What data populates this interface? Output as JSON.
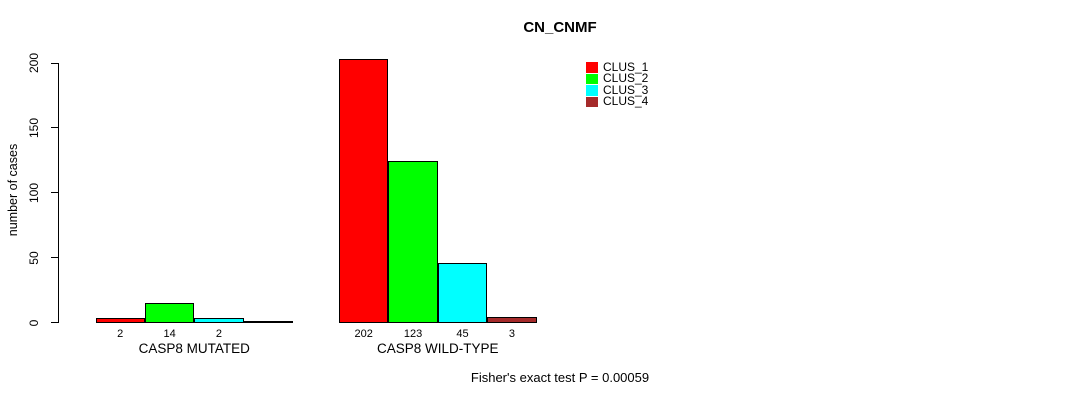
{
  "chart_data": {
    "type": "bar",
    "title": "CN_CNMF",
    "ylabel": "number of cases",
    "xlabel": "",
    "ylim": [
      0,
      200
    ],
    "yticks": [
      0,
      50,
      100,
      150,
      200
    ],
    "grid": false,
    "legend_position": "top-right",
    "legend": [
      {
        "label": "CLUS_1",
        "color": "#FF0000"
      },
      {
        "label": "CLUS_2",
        "color": "#00FF00"
      },
      {
        "label": "CLUS_3",
        "color": "#00FFFF"
      },
      {
        "label": "CLUS_4",
        "color": "#A52A2A"
      }
    ],
    "categories": [
      "CASP8 MUTATED",
      "CASP8 WILD-TYPE"
    ],
    "series": [
      {
        "name": "CLUS_1",
        "color": "#FF0000",
        "values": [
          2,
          202
        ]
      },
      {
        "name": "CLUS_2",
        "color": "#00FF00",
        "values": [
          14,
          123
        ]
      },
      {
        "name": "CLUS_3",
        "color": "#00FFFF",
        "values": [
          2,
          45
        ]
      },
      {
        "name": "CLUS_4",
        "color": "#A52A2A",
        "values": [
          0,
          3
        ]
      }
    ],
    "bar_value_labels": [
      [
        "2",
        "14",
        "2",
        ""
      ],
      [
        "202",
        "123",
        "45",
        "3"
      ]
    ],
    "footer": "Fisher's exact test P = 0.00059"
  }
}
